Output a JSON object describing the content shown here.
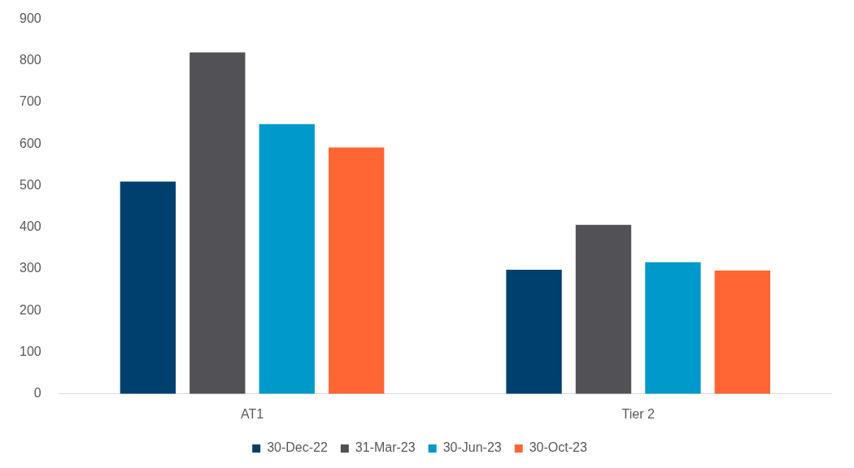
{
  "chart_data": {
    "type": "bar",
    "categories": [
      "AT1",
      "Tier 2"
    ],
    "series": [
      {
        "name": "30-Dec-22",
        "color": "#00406e",
        "values": [
          510,
          298
        ]
      },
      {
        "name": "31-Mar-23",
        "color": "#525256",
        "values": [
          820,
          406
        ]
      },
      {
        "name": "30-Jun-23",
        "color": "#0099cc",
        "values": [
          648,
          316
        ]
      },
      {
        "name": "30-Oct-23",
        "color": "#ff6633",
        "values": [
          592,
          296
        ]
      }
    ],
    "ylim": [
      0,
      900
    ],
    "yticks": [
      0,
      100,
      200,
      300,
      400,
      500,
      600,
      700,
      800,
      900
    ],
    "grid": false,
    "legend": "bottom"
  }
}
